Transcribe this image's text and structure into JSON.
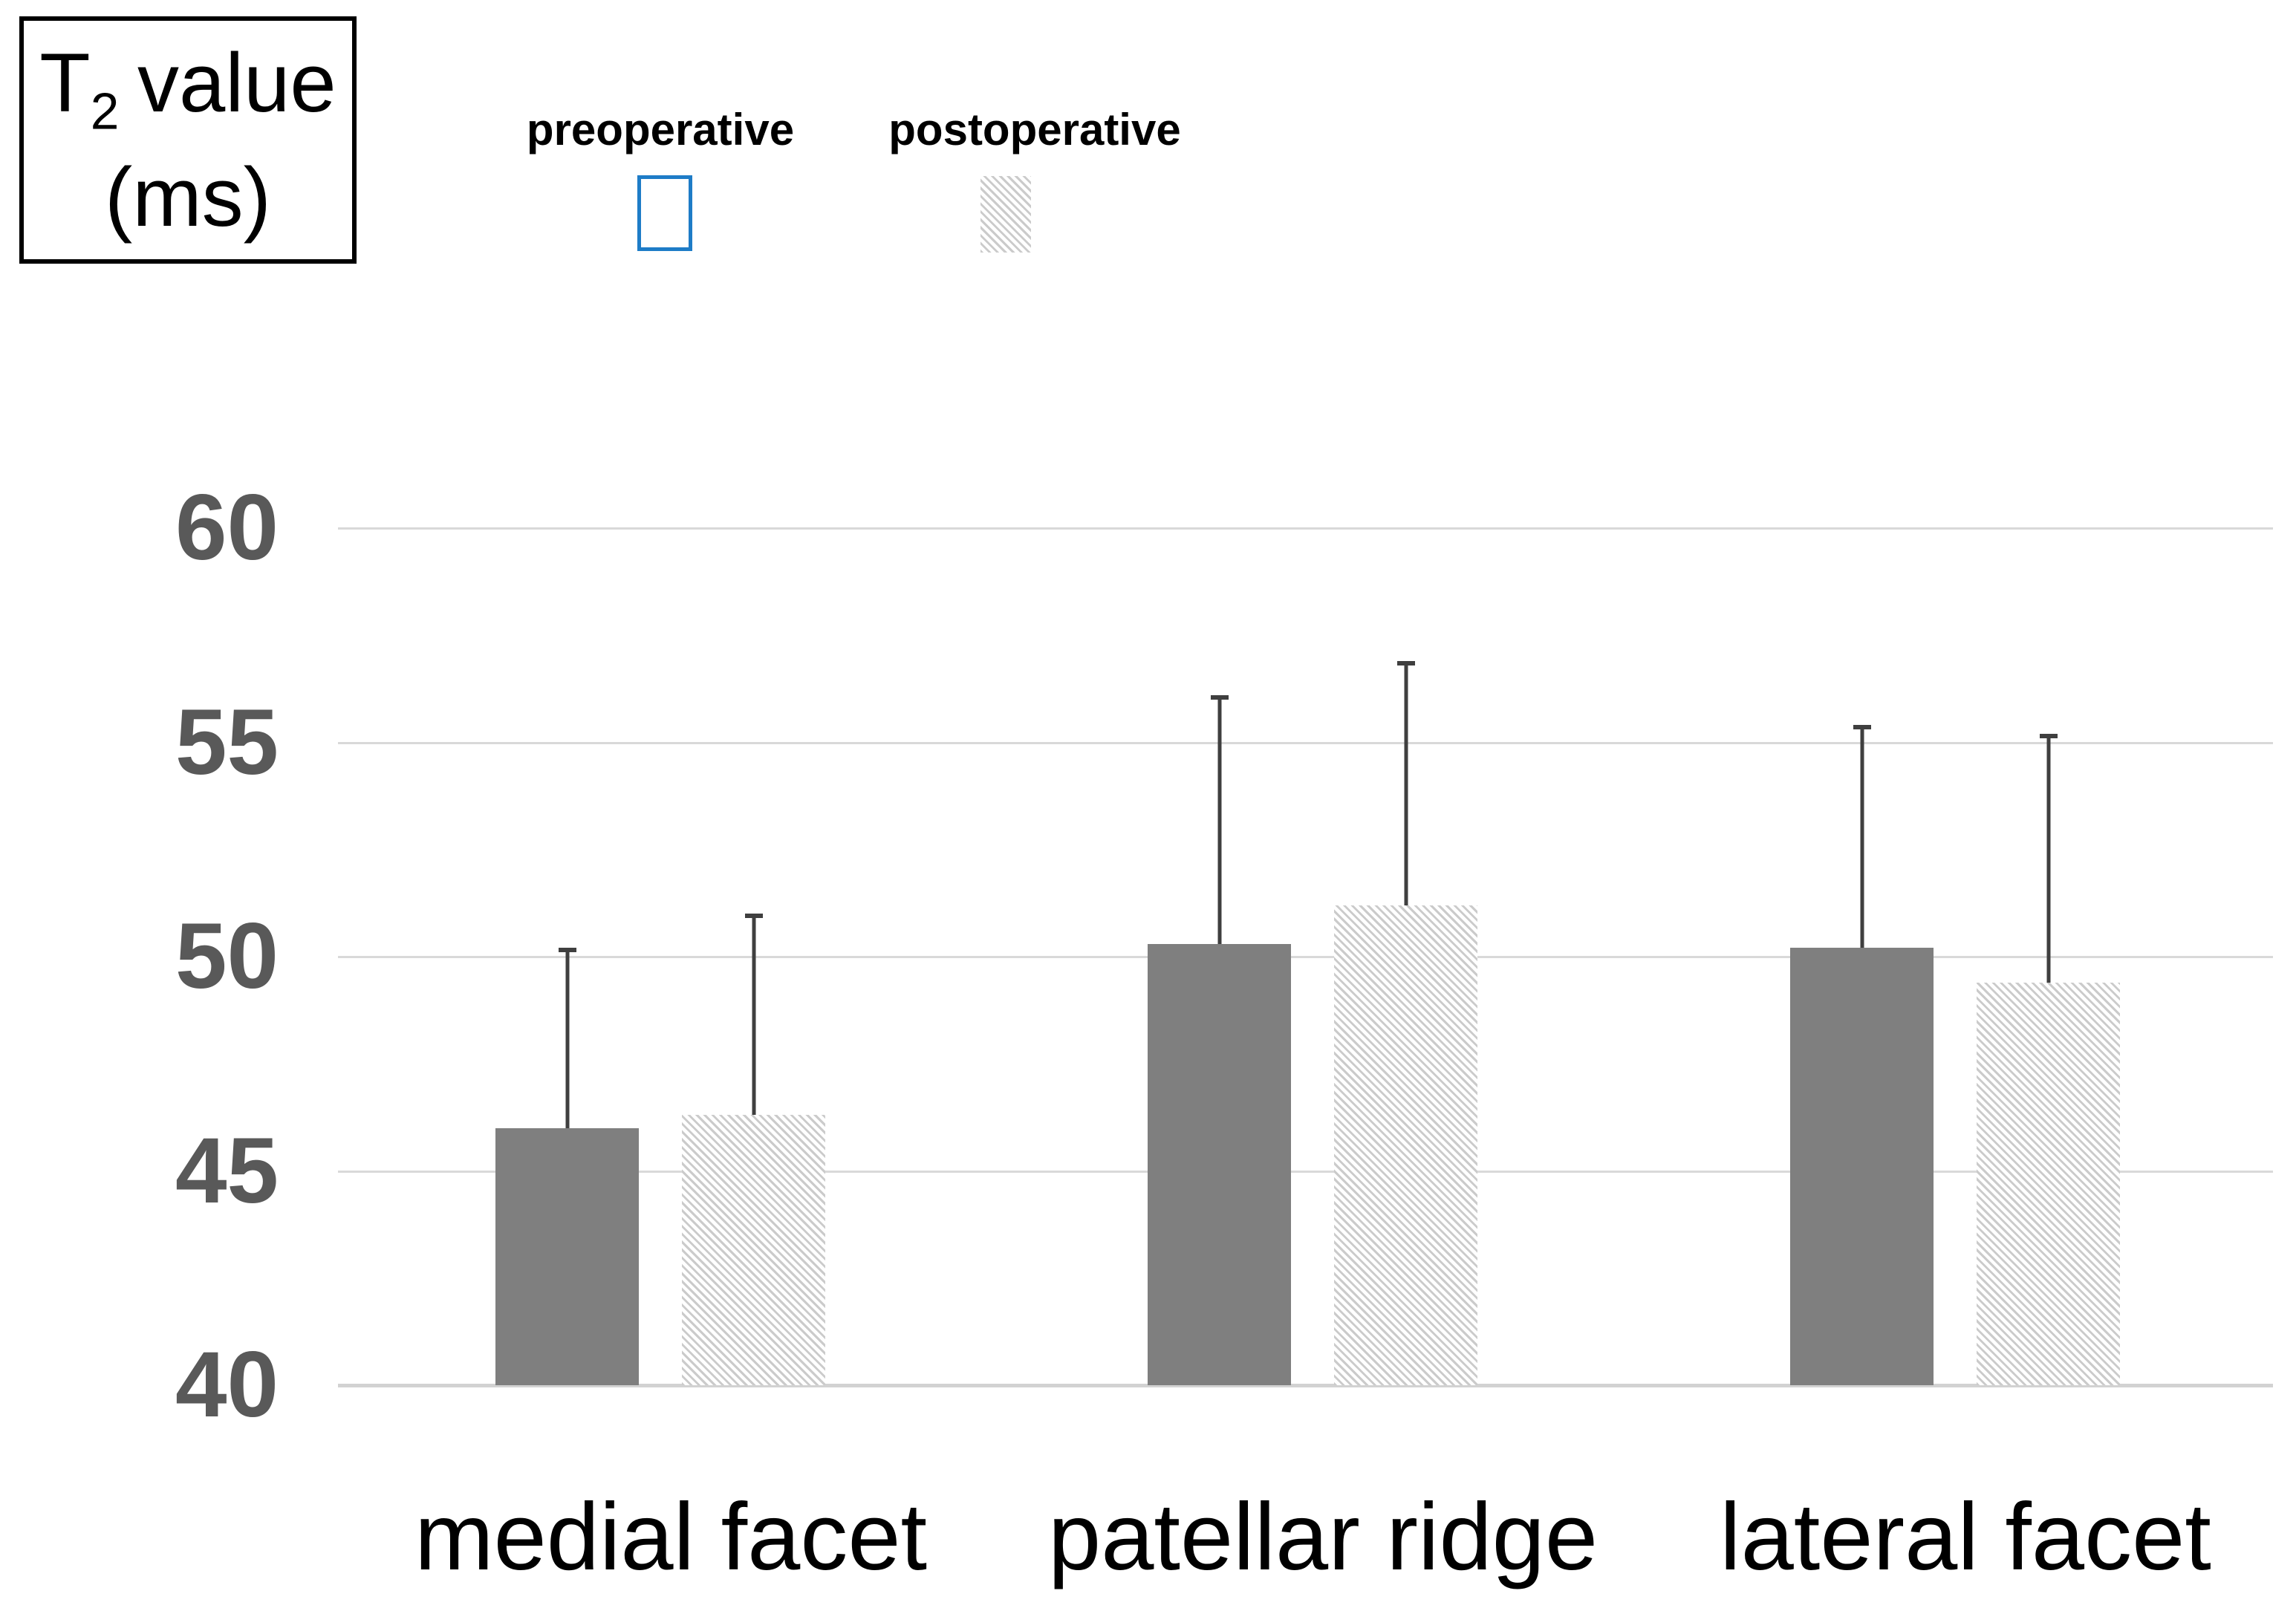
{
  "title_box": {
    "symbol": "T",
    "subscript": "2",
    "rest": "value",
    "line2": "(ms)"
  },
  "legend": [
    {
      "label": "preoperative",
      "swatch": "solid-gray-blue-border"
    },
    {
      "label": "postoperative",
      "swatch": "diagonal-hatch"
    }
  ],
  "colors": {
    "solid_bar": "#7f7f7f",
    "hatch_stripe": "#cbcbcb",
    "legend_border_blue": "#1e7cc7",
    "gridline": "#d9d9d9",
    "axis_baseline": "#d2d2d2",
    "y_tick_text": "#595959",
    "error_bar": "#3f3f3f",
    "text": "#000000",
    "background": "#ffffff"
  },
  "chart_data": {
    "type": "bar",
    "title": "T2 value (ms)",
    "categories": [
      "medial facet",
      "patellar ridge",
      "lateral facet"
    ],
    "series": [
      {
        "name": "preoperative",
        "style": "solid",
        "values": [
          46.0,
          50.3,
          50.2
        ],
        "error_up": [
          4.2,
          5.8,
          5.2
        ]
      },
      {
        "name": "postoperative",
        "style": "hatched",
        "values": [
          46.3,
          51.2,
          49.4
        ],
        "error_up": [
          4.7,
          5.7,
          5.8
        ]
      }
    ],
    "ylabel": "T2 value (ms)",
    "xlabel": "",
    "yticks": [
      40,
      45,
      50,
      55,
      60
    ],
    "ylim": [
      40,
      62
    ],
    "grid": "horizontal-only",
    "legend_position": "top",
    "error_bars": "upper-only"
  }
}
